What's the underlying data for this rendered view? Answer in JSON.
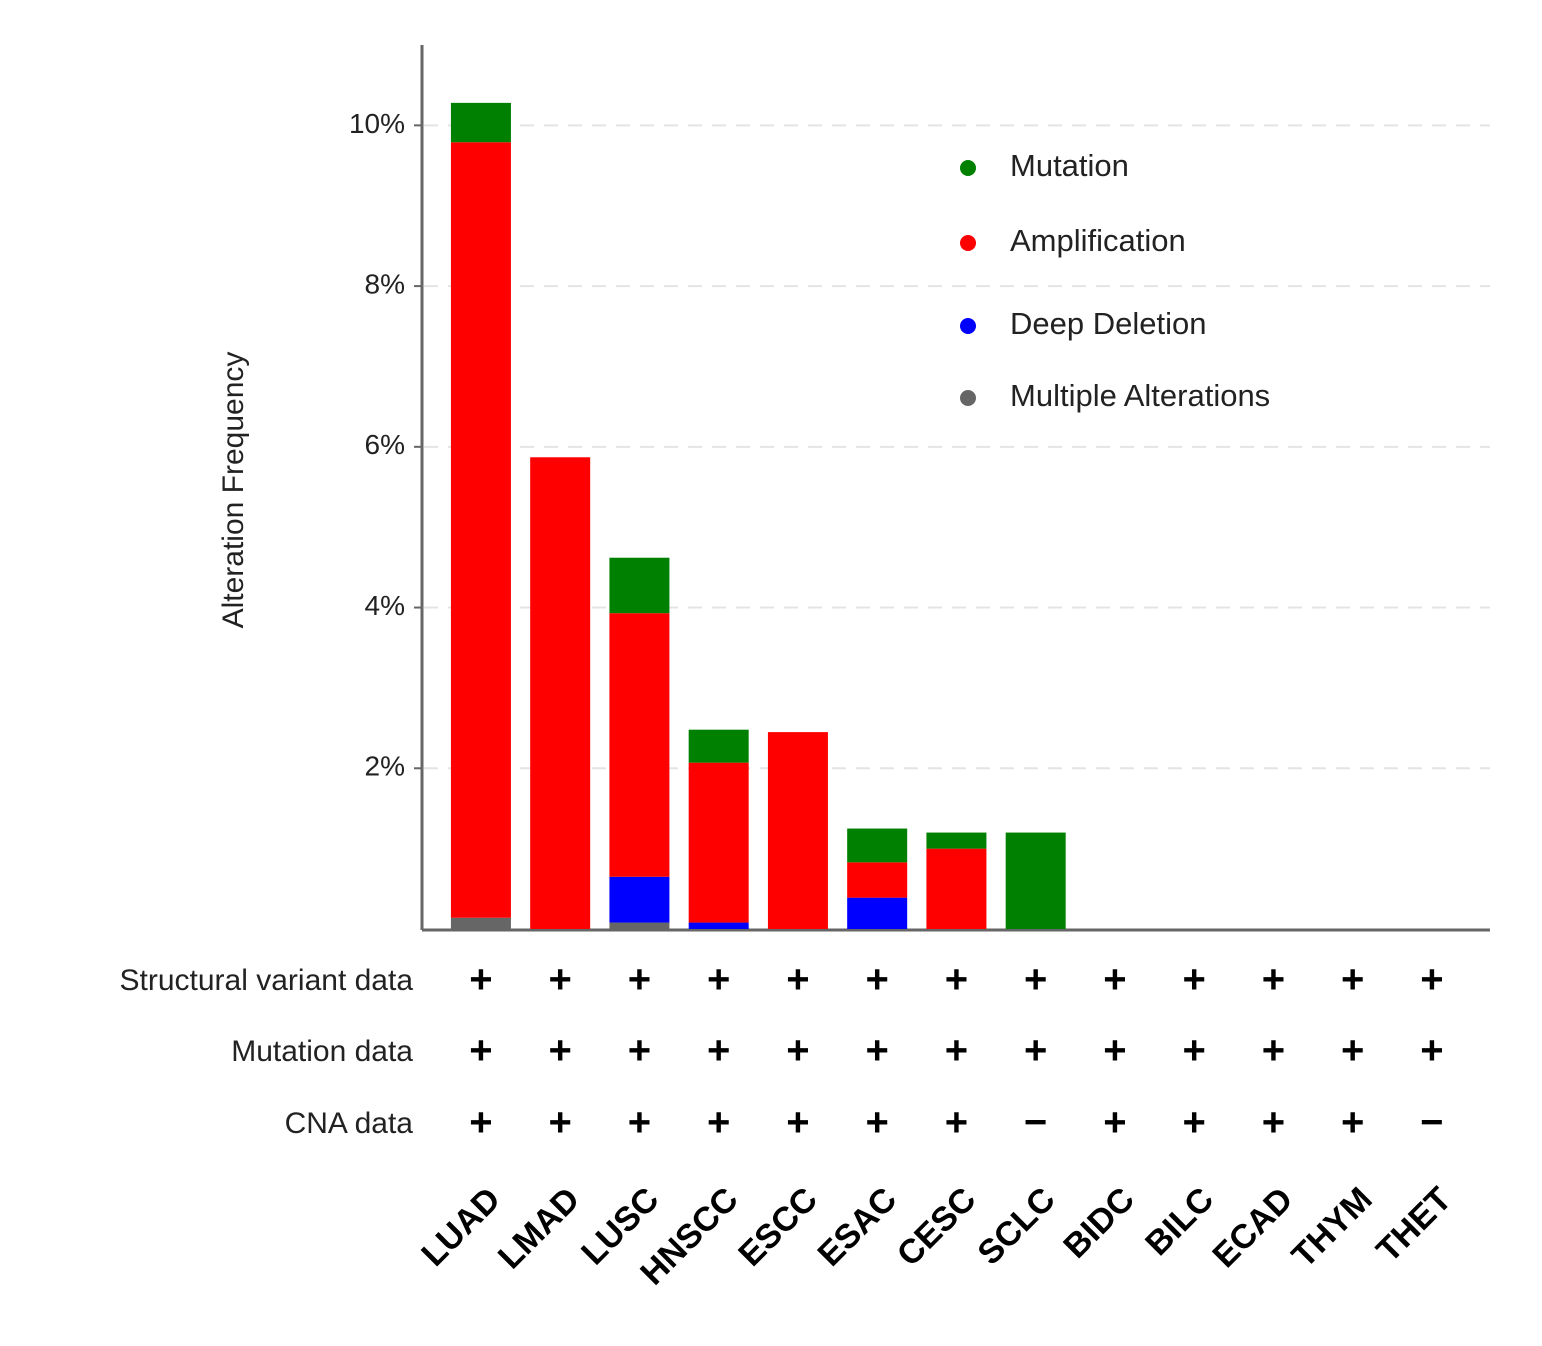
{
  "chart_data": {
    "type": "stacked_bar",
    "y_label": "Alteration Frequency",
    "categories": [
      "LUAD",
      "LMAD",
      "LUSC",
      "HNSCC",
      "ESCC",
      "ESAC",
      "CESC",
      "SCLC",
      "BIDC",
      "BILC",
      "ECAD",
      "THYM",
      "THET"
    ],
    "series": [
      {
        "name": "Mutation",
        "color": "#008000",
        "values": [
          0.49,
          0,
          0.69,
          0.41,
          0,
          0.42,
          0.2,
          1.2,
          0,
          0,
          0,
          0,
          0
        ]
      },
      {
        "name": "Amplification",
        "color": "#ff0000",
        "values": [
          9.65,
          5.87,
          3.28,
          1.99,
          2.45,
          0.44,
          1.0,
          0,
          0,
          0,
          0,
          0,
          0
        ]
      },
      {
        "name": "Deep Deletion",
        "color": "#0000ff",
        "values": [
          0,
          0,
          0.57,
          0.08,
          0,
          0.39,
          0,
          0,
          0,
          0,
          0,
          0,
          0
        ]
      },
      {
        "name": "Multiple Alterations",
        "color": "#666666",
        "values": [
          0.14,
          0,
          0.08,
          0,
          0,
          0,
          0,
          0,
          0,
          0,
          0,
          0,
          0
        ]
      }
    ],
    "ylim": [
      0,
      11
    ],
    "yticks": [
      {
        "value": 2,
        "label": "2%"
      },
      {
        "value": 4,
        "label": "4%"
      },
      {
        "value": 6,
        "label": "6%"
      },
      {
        "value": 8,
        "label": "8%"
      },
      {
        "value": 10,
        "label": "10%"
      }
    ],
    "grid": true,
    "legend": "top-right",
    "data_rows": [
      {
        "label": "Structural variant data",
        "values": [
          "+",
          "+",
          "+",
          "+",
          "+",
          "+",
          "+",
          "+",
          "+",
          "+",
          "+",
          "+",
          "+"
        ]
      },
      {
        "label": "Mutation data",
        "values": [
          "+",
          "+",
          "+",
          "+",
          "+",
          "+",
          "+",
          "+",
          "+",
          "+",
          "+",
          "+",
          "+"
        ]
      },
      {
        "label": "CNA data",
        "values": [
          "+",
          "+",
          "+",
          "+",
          "+",
          "+",
          "+",
          "−",
          "+",
          "+",
          "+",
          "+",
          "−"
        ]
      }
    ]
  }
}
